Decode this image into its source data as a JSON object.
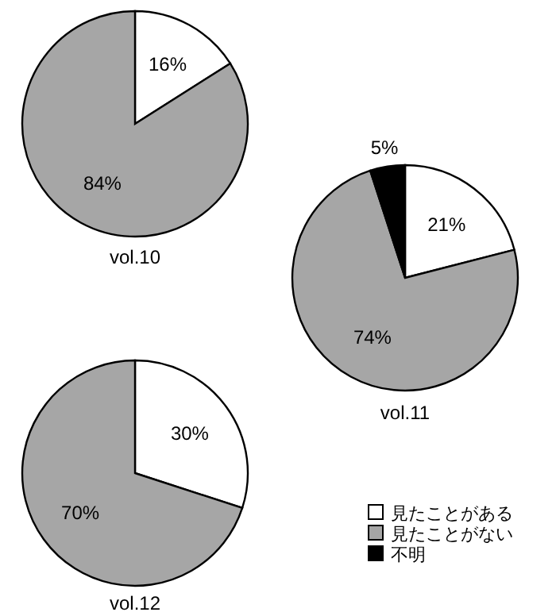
{
  "chart_data": [
    {
      "type": "pie",
      "title": "vol.10",
      "categories": [
        null,
        null
      ],
      "values": [
        16,
        84
      ],
      "value_labels": [
        "16%",
        "84%"
      ],
      "colors": [
        "#ffffff",
        "#a6a6a6"
      ],
      "legend": false
    },
    {
      "type": "pie",
      "title": "vol.11",
      "categories": [
        "見たことがある",
        "見たことがない",
        "不明"
      ],
      "values": [
        21,
        74,
        5
      ],
      "value_labels": [
        "21%",
        "74%",
        "5%"
      ],
      "colors": [
        "#ffffff",
        "#a6a6a6",
        "#000000"
      ],
      "legend": "bottom"
    },
    {
      "type": "pie",
      "title": "vol.12",
      "categories": [
        null,
        null
      ],
      "values": [
        30,
        70
      ],
      "value_labels": [
        "30%",
        "70%"
      ],
      "colors": [
        "#ffffff",
        "#a6a6a6"
      ],
      "legend": false
    }
  ]
}
